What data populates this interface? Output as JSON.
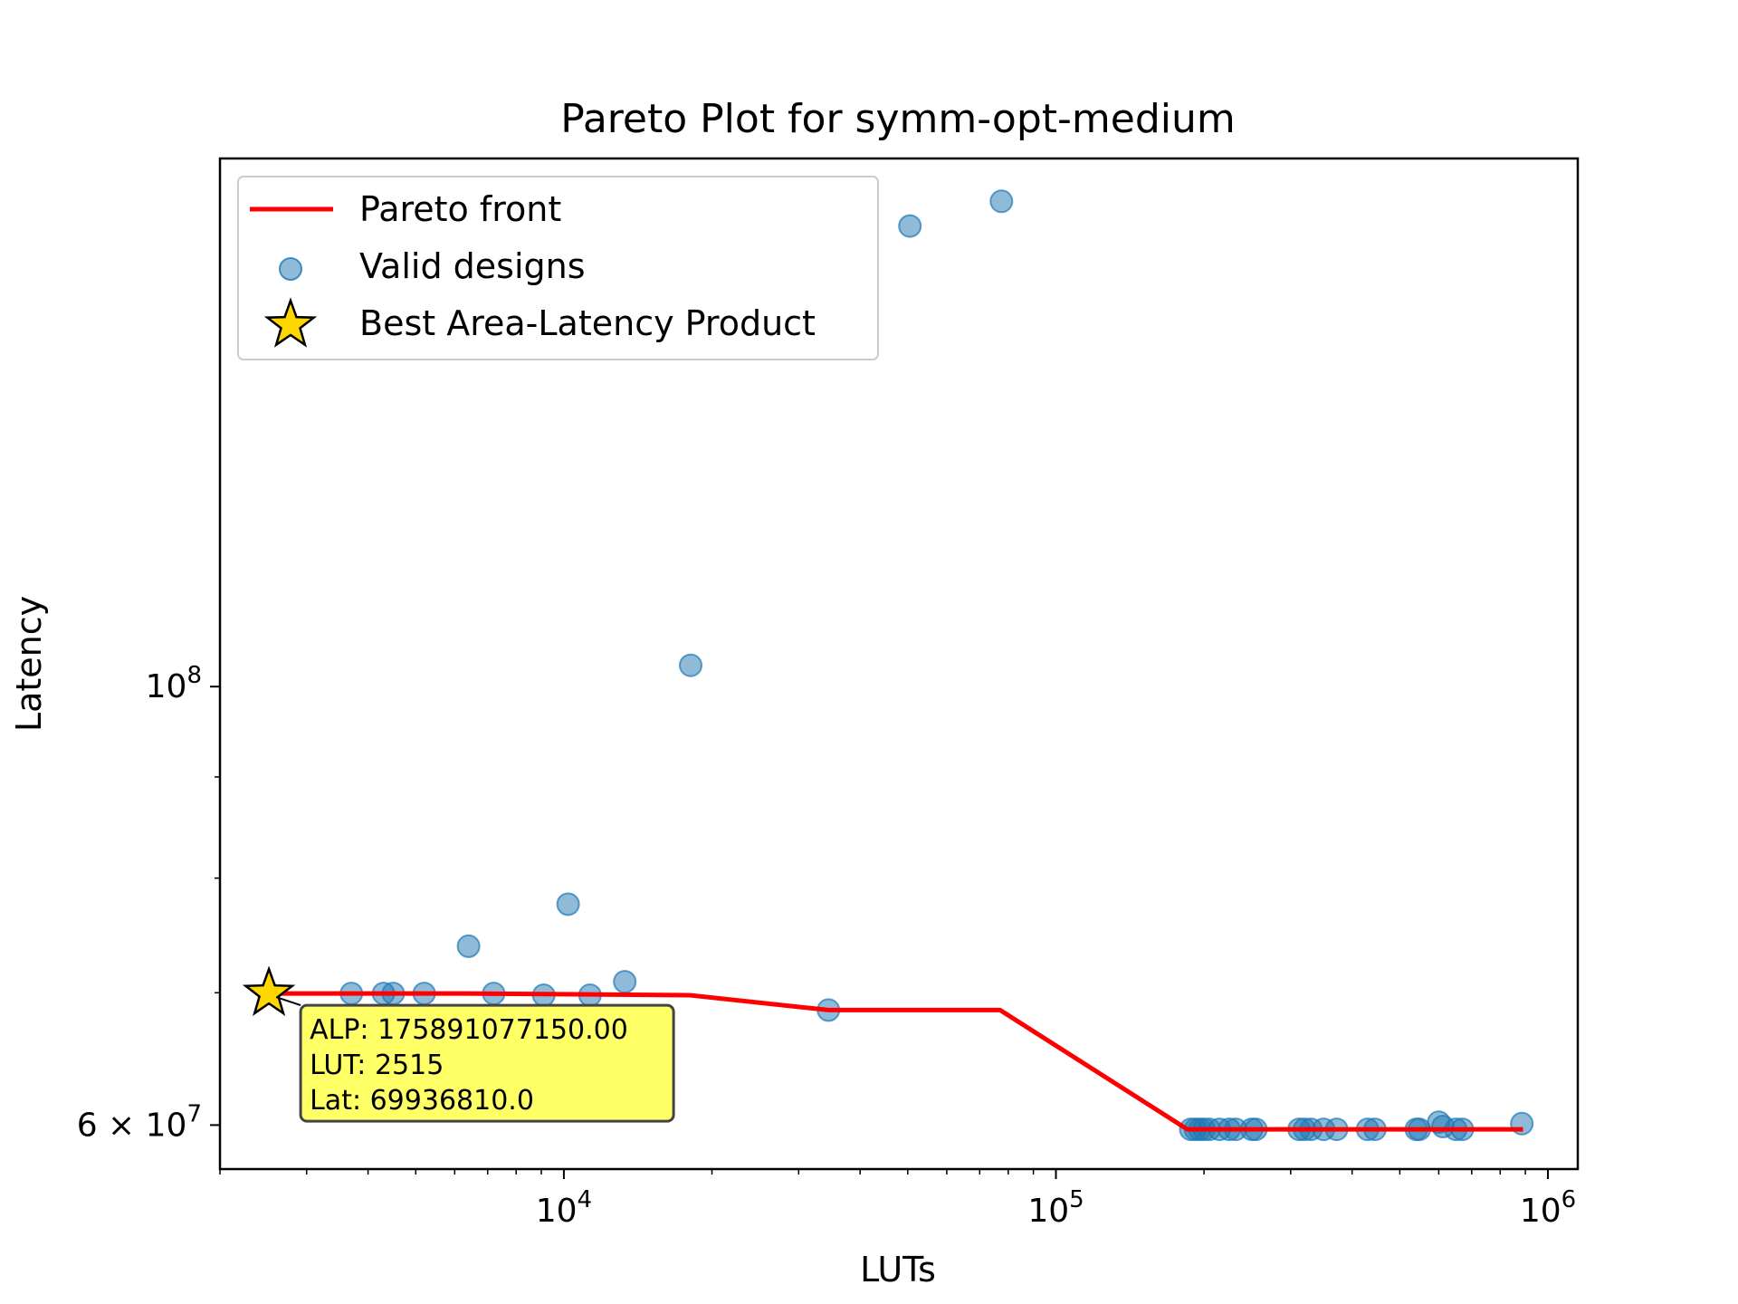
{
  "chart_data": {
    "type": "scatter",
    "title": "Pareto Plot for symm-opt-medium",
    "xlabel": "LUTs",
    "ylabel": "Latency",
    "xscale": "log",
    "yscale": "log",
    "xlim": [
      2000,
      1150000
    ],
    "ylim": [
      57000000,
      185000000
    ],
    "grid": false,
    "legend_position": "top-left",
    "x_ticks": [
      {
        "value": 10000,
        "base": "10",
        "exp": "4"
      },
      {
        "value": 100000,
        "base": "10",
        "exp": "5"
      },
      {
        "value": 1000000,
        "base": "10",
        "exp": "6"
      }
    ],
    "y_ticks": [
      {
        "value": 100000000,
        "base": "10",
        "exp": "8"
      },
      {
        "value": 60000000,
        "base": "6 × 10",
        "exp": "7"
      }
    ],
    "legend": [
      {
        "label": "Pareto front",
        "marker": "line"
      },
      {
        "label": "Valid designs",
        "marker": "circle"
      },
      {
        "label": "Best Area-Latency Product",
        "marker": "star"
      }
    ],
    "series": [
      {
        "name": "Pareto front",
        "kind": "line",
        "color": "#ff0000",
        "points": [
          [
            2515,
            69936810
          ],
          [
            6300,
            69936810
          ],
          [
            18000,
            69800000
          ],
          [
            34500,
            68600000
          ],
          [
            77000,
            68600000
          ],
          [
            185000,
            59700000
          ],
          [
            200000,
            59700000
          ],
          [
            890000,
            59700000
          ]
        ]
      },
      {
        "name": "Valid designs",
        "kind": "scatter",
        "color": "#1f77b4",
        "points": [
          [
            2515,
            69936810
          ],
          [
            3700,
            69936810
          ],
          [
            4300,
            69936810
          ],
          [
            4500,
            69936810
          ],
          [
            5200,
            69936810
          ],
          [
            6400,
            73900000
          ],
          [
            7200,
            69936810
          ],
          [
            9100,
            69800000
          ],
          [
            10200,
            77600000
          ],
          [
            11300,
            69800000
          ],
          [
            13300,
            70900000
          ],
          [
            18100,
            102500000
          ],
          [
            34500,
            68600000
          ],
          [
            50500,
            171000000
          ],
          [
            77500,
            176000000
          ],
          [
            188000,
            59700000
          ],
          [
            192000,
            59700000
          ],
          [
            196000,
            59700000
          ],
          [
            200000,
            59700000
          ],
          [
            205000,
            59700000
          ],
          [
            215000,
            59700000
          ],
          [
            225000,
            59700000
          ],
          [
            232000,
            59700000
          ],
          [
            250000,
            59700000
          ],
          [
            255000,
            59700000
          ],
          [
            312000,
            59700000
          ],
          [
            320000,
            59700000
          ],
          [
            330000,
            59700000
          ],
          [
            350000,
            59700000
          ],
          [
            372000,
            59700000
          ],
          [
            430000,
            59700000
          ],
          [
            445000,
            59700000
          ],
          [
            540000,
            59700000
          ],
          [
            548000,
            59700000
          ],
          [
            600000,
            60200000
          ],
          [
            612000,
            59900000
          ],
          [
            650000,
            59700000
          ],
          [
            670000,
            59700000
          ],
          [
            885000,
            60100000
          ]
        ]
      },
      {
        "name": "Best Area-Latency Product",
        "kind": "marker",
        "marker": "star",
        "color": "#ffd700",
        "points": [
          [
            2515,
            69936810
          ]
        ]
      }
    ],
    "annotation": {
      "lines": [
        "ALP: 175891077150.00",
        "LUT: 2515",
        "Lat: 69936810.0"
      ],
      "background": "#ffff66"
    }
  }
}
